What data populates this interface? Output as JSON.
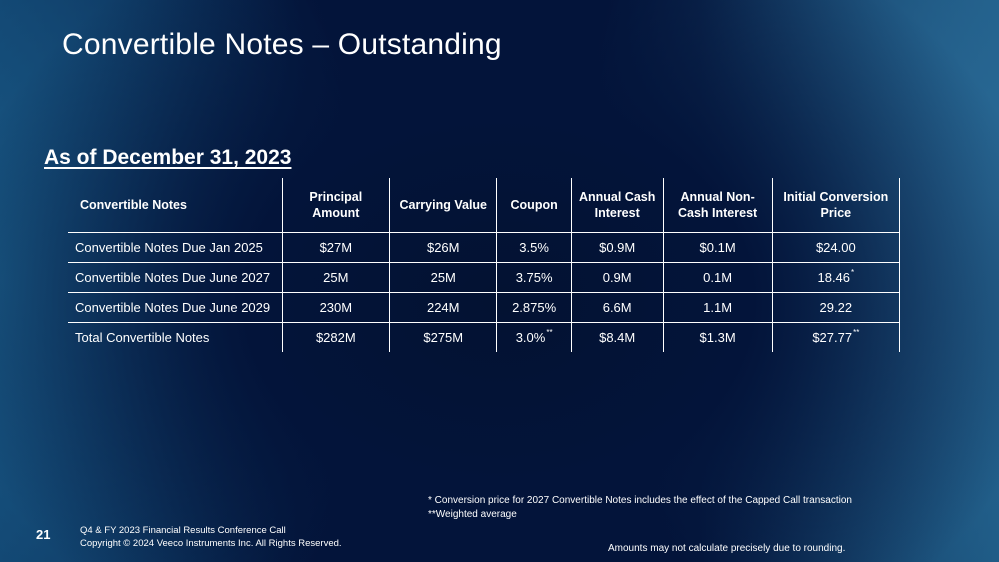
{
  "slide": {
    "title": "Convertible Notes – Outstanding",
    "subtitle": "As of December 31, 2023"
  },
  "table": {
    "headers": [
      "Convertible Notes",
      "Principal Amount",
      "Carrying Value",
      "Coupon",
      "Annual Cash Interest",
      "Annual Non-Cash Interest",
      "Initial Conversion Price"
    ],
    "rows": [
      {
        "cells": [
          "Convertible Notes Due Jan 2025",
          "$27M",
          "$26M",
          "3.5%",
          "$0.9M",
          "$0.1M",
          "$24.00"
        ],
        "marks": [
          "",
          "",
          "",
          "",
          "",
          "",
          ""
        ]
      },
      {
        "cells": [
          "Convertible Notes Due June 2027",
          "25M",
          "25M",
          "3.75%",
          "0.9M",
          "0.1M",
          "18.46"
        ],
        "marks": [
          "",
          "",
          "",
          "",
          "",
          "",
          "*"
        ]
      },
      {
        "cells": [
          "Convertible Notes Due June 2029",
          "230M",
          "224M",
          "2.875%",
          "6.6M",
          "1.1M",
          "29.22"
        ],
        "marks": [
          "",
          "",
          "",
          "",
          "",
          "",
          ""
        ]
      },
      {
        "cells": [
          "Total Convertible Notes",
          "$282M",
          "$275M",
          "3.0%",
          "$8.4M",
          "$1.3M",
          "$27.77"
        ],
        "marks": [
          "",
          "",
          "",
          "**",
          "",
          "",
          "**"
        ]
      }
    ]
  },
  "footnotes": [
    "*  Conversion price for 2027 Convertible Notes includes the effect of the Capped Call transaction",
    "**Weighted average"
  ],
  "footer": {
    "page_number": "21",
    "line1": "Q4 & FY 2023 Financial Results Conference Call",
    "line2": "Copyright © 2024 Veeco Instruments Inc. All Rights Reserved.",
    "rounding_note": "Amounts may not calculate precisely due to rounding."
  }
}
